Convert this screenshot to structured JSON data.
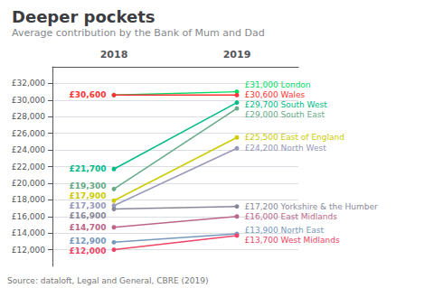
{
  "chart_data": {
    "type": "line",
    "title": "Deeper pockets",
    "subtitle": "Average contribution by the Bank of Mum and Dad",
    "annotations": [
      "Source: dataloft, Legal and General, CBRE (2019)"
    ],
    "categories": [
      "2018",
      "2019"
    ],
    "series": [
      {
        "name": "London",
        "color": "#00dd66",
        "values": [
          30600,
          31000
        ],
        "value_labels": [
          null,
          "£31,000 London"
        ]
      },
      {
        "name": "Wales",
        "color": "#ff3333",
        "values": [
          30600,
          30600
        ],
        "value_labels": [
          "£30,600",
          "£30,600 Wales"
        ]
      },
      {
        "name": "South West",
        "color": "#00bb88",
        "values": [
          21700,
          29700
        ],
        "value_labels": [
          "£21,700",
          "£29,700 South West"
        ]
      },
      {
        "name": "South East",
        "color": "#66aa88",
        "values": [
          19300,
          29000
        ],
        "value_labels": [
          "£19,300",
          "£29,000 South East"
        ]
      },
      {
        "name": "East of England",
        "color": "#cccc00",
        "values": [
          17900,
          25500
        ],
        "value_labels": [
          "£17,900",
          "£25,500 East of England"
        ]
      },
      {
        "name": "North West",
        "color": "#9999bb",
        "values": [
          17300,
          24200
        ],
        "value_labels": [
          "£17,300",
          "£24,200 North West"
        ]
      },
      {
        "name": "Yorkshire & the Humber",
        "color": "#888899",
        "values": [
          16900,
          17200
        ],
        "value_labels": [
          "£16,900",
          "£17,200 Yorkshire & the Humber"
        ]
      },
      {
        "name": "East Midlands",
        "color": "#bb6688",
        "values": [
          14700,
          16000
        ],
        "value_labels": [
          "£14,700",
          "£16,000 East Midlands"
        ]
      },
      {
        "name": "North East",
        "color": "#7799bb",
        "values": [
          12900,
          13900
        ],
        "value_labels": [
          "£12,900",
          "£13,900 North East"
        ]
      },
      {
        "name": "West Midlands",
        "color": "#ee4466",
        "values": [
          12000,
          13700
        ],
        "value_labels": [
          "£12,000",
          "£13,700 West Midlands"
        ]
      }
    ],
    "ylim": [
      10000,
      34000
    ],
    "yticks": [
      {
        "value": 12000,
        "label": "£12,000"
      },
      {
        "value": 14000,
        "label": "£14,000"
      },
      {
        "value": 16000,
        "label": "£16,000"
      },
      {
        "value": 18000,
        "label": "£18,000"
      },
      {
        "value": 20000,
        "label": "£20,000"
      },
      {
        "value": 22000,
        "label": "£22,000"
      },
      {
        "value": 24000,
        "label": "£24,000"
      },
      {
        "value": 26000,
        "label": "£26,000"
      },
      {
        "value": 28000,
        "label": "£28,000"
      },
      {
        "value": 30000,
        "label": "£30,000"
      },
      {
        "value": 32000,
        "label": "£32,000"
      }
    ],
    "grid": true,
    "data_labels": true
  }
}
